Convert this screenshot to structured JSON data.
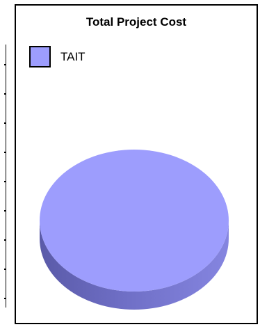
{
  "chart_data": {
    "type": "pie",
    "title": "Total Project Cost",
    "categories": [
      "TAIT"
    ],
    "values": [
      100
    ],
    "colors": [
      "#9d9dfd"
    ],
    "style": "3d",
    "legend_position": "top-left"
  }
}
